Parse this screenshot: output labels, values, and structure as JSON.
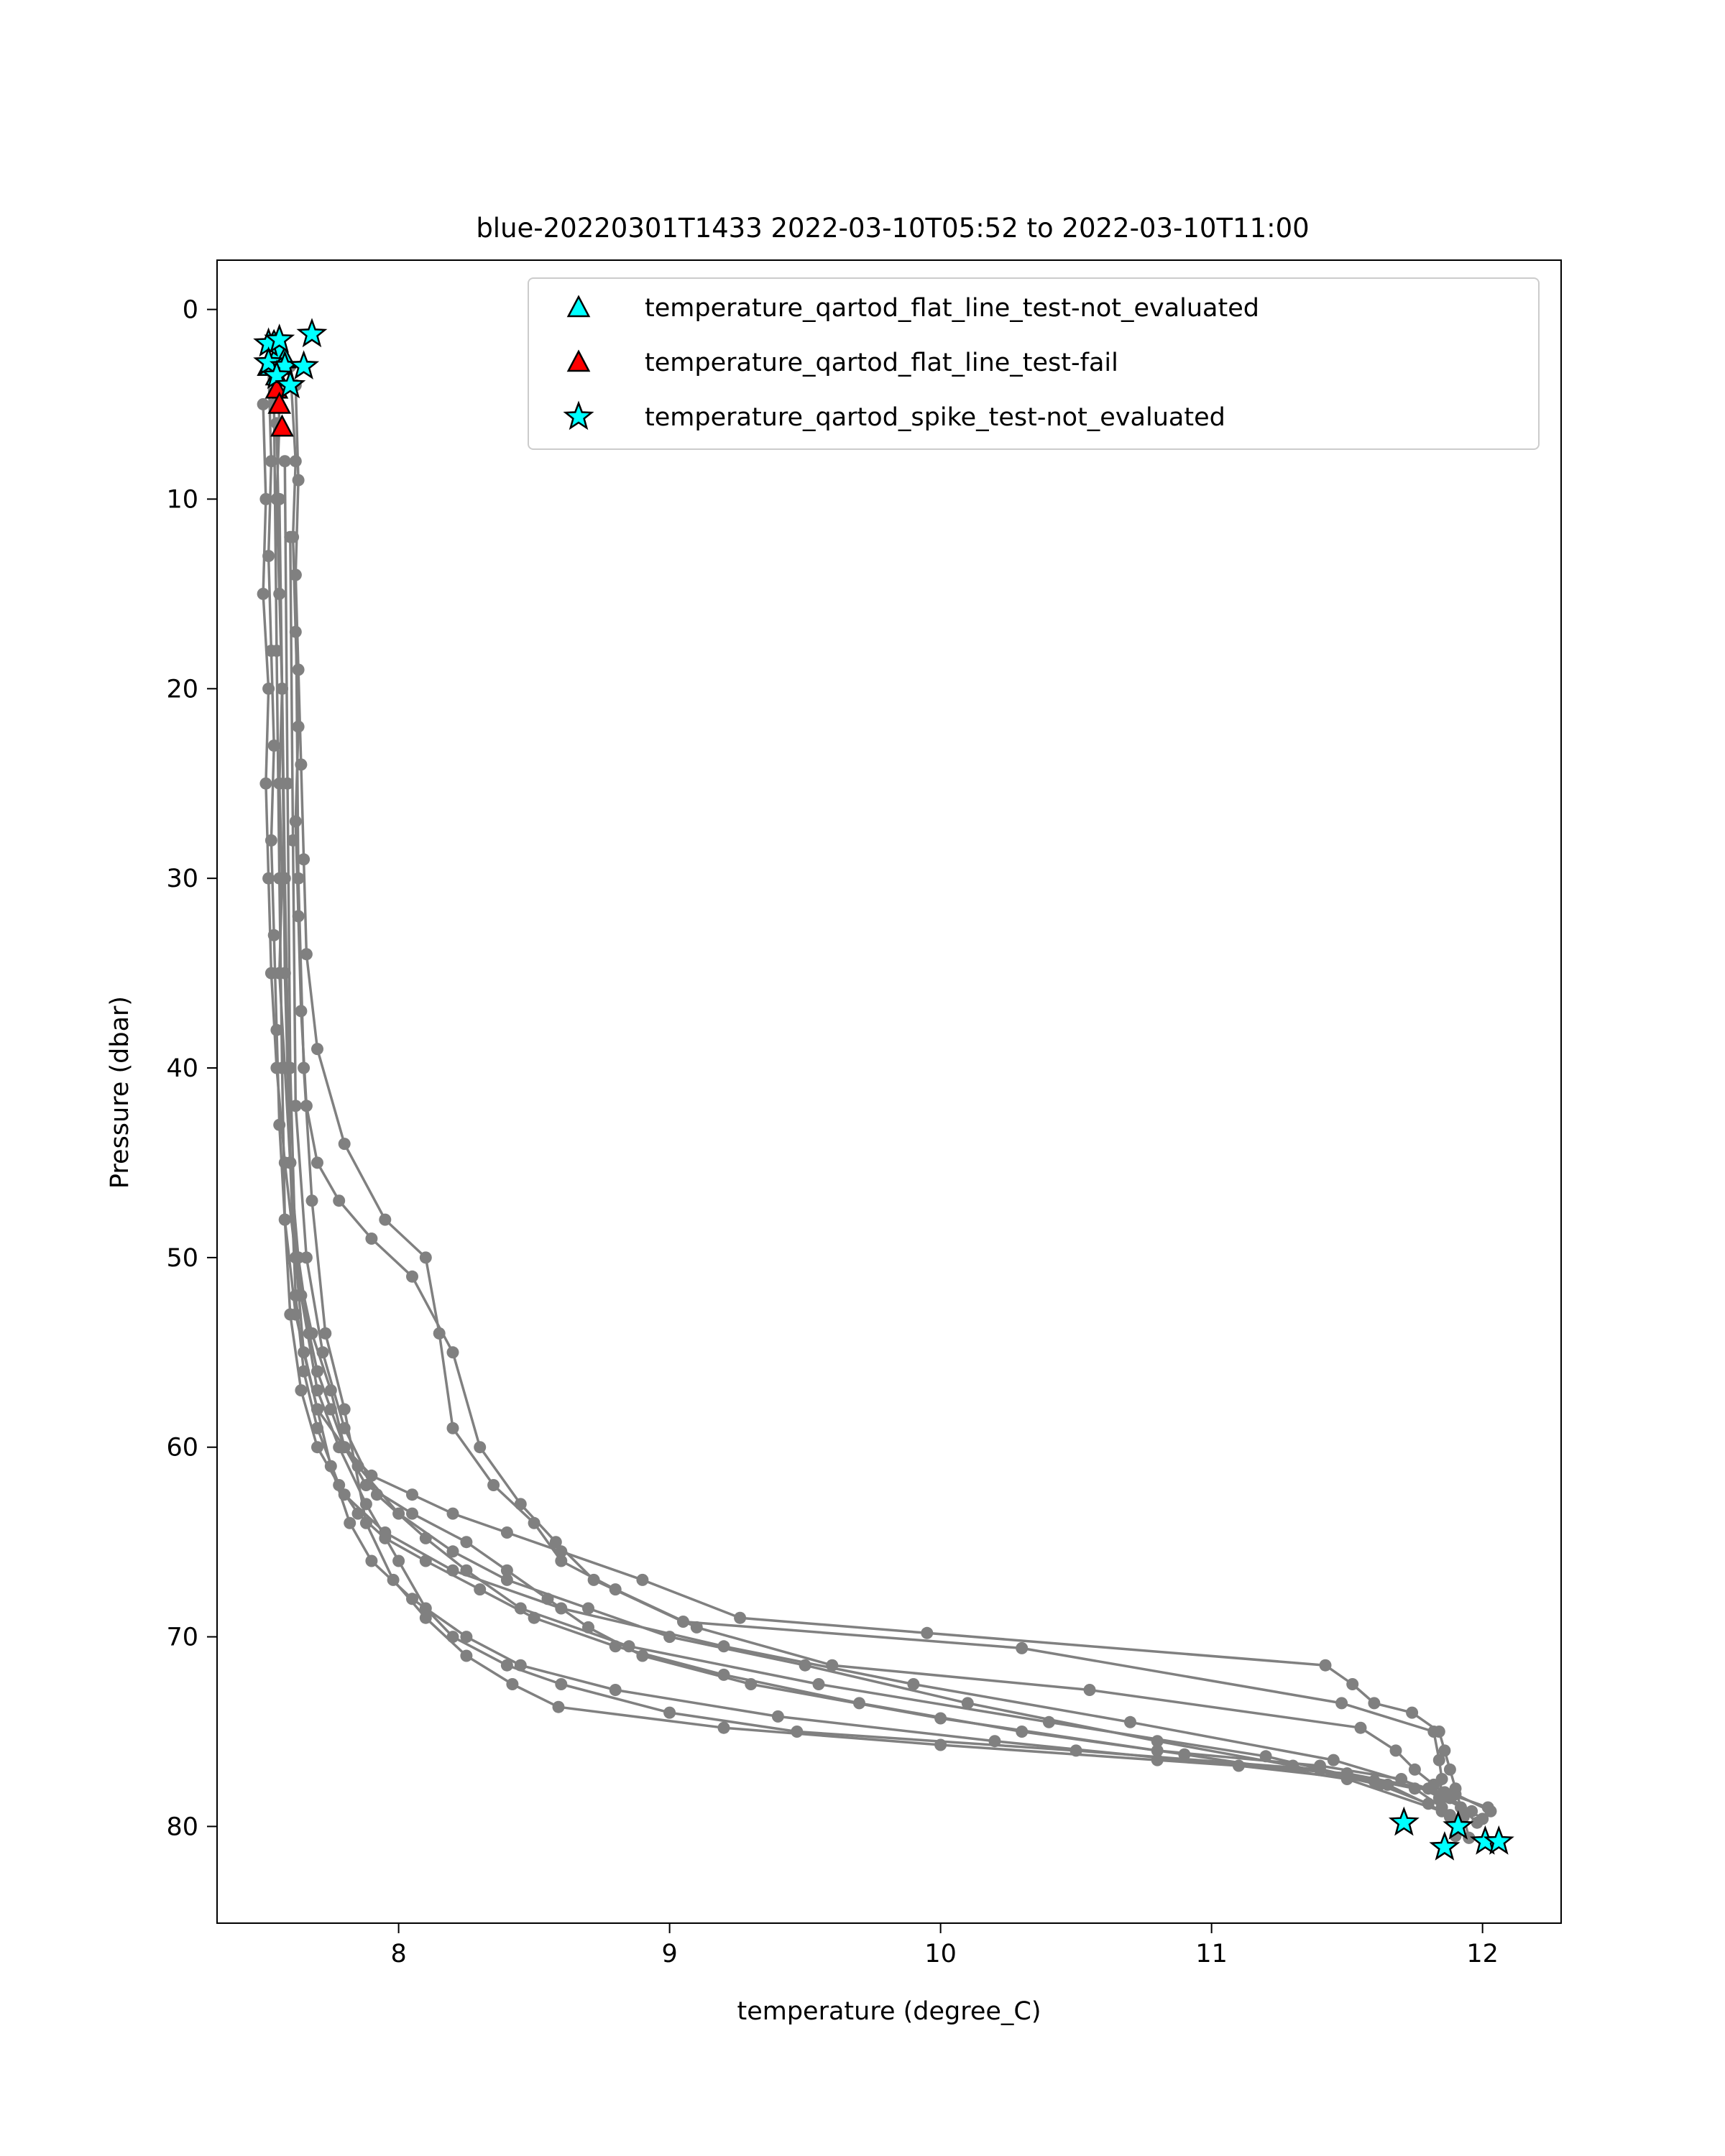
{
  "chart_data": {
    "type": "line",
    "title": "blue-20220301T1433 2022-03-10T05:52 to 2022-03-10T11:00",
    "xlabel": "temperature (degree_C)",
    "ylabel": "Pressure (dbar)",
    "xlim": [
      7.33,
      12.29
    ],
    "ylim": [
      85.1,
      -2.6
    ],
    "y_inverted": true,
    "grid": false,
    "legend_position": "top-right",
    "x_ticks": [
      8,
      9,
      10,
      11,
      12
    ],
    "x_tick_labels": [
      "8",
      "9",
      "10",
      "11",
      "12"
    ],
    "y_ticks": [
      0,
      10,
      20,
      30,
      40,
      50,
      60,
      70,
      80
    ],
    "y_tick_labels": [
      "0",
      "10",
      "20",
      "30",
      "40",
      "50",
      "60",
      "70",
      "80"
    ],
    "profile_color": "#808080",
    "series": [
      {
        "type": "line",
        "x": [
          7.55,
          7.56,
          7.55,
          7.56,
          7.57,
          7.56,
          7.57,
          7.56,
          7.58,
          7.6,
          7.63,
          7.67,
          7.7,
          7.75,
          7.8,
          7.9,
          8.05,
          8.2,
          8.4,
          8.6,
          8.9,
          9.26,
          9.95,
          11.42,
          11.52,
          11.6,
          11.74,
          11.84,
          11.86,
          11.88,
          11.9,
          11.93,
          11.95
        ],
        "y": [
          2,
          6,
          10,
          15,
          20,
          25,
          30,
          35,
          40,
          45,
          50,
          54,
          56,
          58,
          60,
          61.5,
          62.5,
          63.5,
          64.5,
          65.5,
          67,
          69,
          69.8,
          71.5,
          72.5,
          73.5,
          74,
          75,
          76,
          77,
          78,
          79.5,
          80.6
        ]
      },
      {
        "type": "line",
        "x": [
          7.6,
          7.62,
          7.61,
          7.62,
          7.63,
          7.62,
          7.63,
          7.64,
          7.66,
          7.7,
          7.78,
          7.9,
          8.05,
          8.2,
          8.3,
          8.45,
          8.58,
          8.72,
          9.05,
          10.3,
          11.48,
          11.82,
          11.84,
          11.85,
          11.84,
          11.88,
          11.9
        ],
        "y": [
          3,
          8,
          12,
          17,
          22,
          27,
          32,
          37,
          42,
          45,
          47,
          49,
          51,
          55,
          60,
          63,
          65,
          67,
          69.2,
          70.6,
          73.5,
          75,
          76.5,
          77.5,
          78.5,
          79.5,
          80.5
        ]
      },
      {
        "type": "line",
        "x": [
          7.62,
          7.63,
          7.62,
          7.63,
          7.64,
          7.65,
          7.66,
          7.7,
          7.8,
          7.95,
          8.1,
          8.15,
          8.2,
          8.35,
          8.5,
          8.6,
          8.8,
          9.1,
          9.6,
          10.55,
          11.55,
          11.68,
          11.75,
          11.82,
          11.88,
          12.0
        ],
        "y": [
          4,
          9,
          14,
          19,
          24,
          29,
          34,
          39,
          44,
          48,
          50,
          54,
          59,
          62,
          64,
          66,
          67.5,
          69.5,
          71.5,
          72.8,
          74.8,
          76,
          77,
          77.8,
          78.5,
          79.6
        ]
      },
      {
        "type": "line",
        "x": [
          7.5,
          7.51,
          7.5,
          7.52,
          7.51,
          7.52,
          7.53,
          7.55,
          7.58,
          7.62,
          7.68,
          7.75,
          7.8,
          7.88,
          8.05,
          8.25,
          8.4,
          8.55,
          8.7,
          8.9,
          9.3,
          10.0,
          10.8,
          11.4,
          11.7,
          11.85,
          11.96
        ],
        "y": [
          5,
          10,
          15,
          20,
          25,
          30,
          35,
          40,
          45,
          50,
          54,
          57,
          60,
          62,
          63.5,
          65,
          66.5,
          68,
          69.5,
          71,
          72.5,
          74.3,
          76,
          76.8,
          77.5,
          78.5,
          79.2
        ]
      },
      {
        "type": "line",
        "x": [
          7.52,
          7.53,
          7.52,
          7.53,
          7.54,
          7.53,
          7.54,
          7.55,
          7.56,
          7.58,
          7.62,
          7.7,
          7.85,
          8.0,
          8.2,
          8.4,
          8.7,
          9.0,
          9.5,
          10.1,
          10.8,
          11.3,
          11.62,
          11.8,
          11.9
        ],
        "y": [
          3,
          8,
          13,
          18,
          23,
          28,
          33,
          38,
          43,
          48,
          53,
          58,
          61,
          63.5,
          65.5,
          67,
          68.5,
          70,
          71.5,
          73.5,
          75.5,
          76.8,
          77.8,
          78.8,
          79.8
        ]
      },
      {
        "type": "line",
        "x": [
          7.55,
          7.57,
          7.58,
          7.6,
          7.62,
          7.65,
          7.7,
          7.78,
          7.85,
          7.95,
          8.1,
          8.3,
          8.5,
          8.8,
          9.2,
          9.7,
          10.3,
          10.9,
          11.5,
          11.85,
          11.95
        ],
        "y": [
          6,
          20,
          35,
          45,
          52,
          56,
          59,
          62,
          63.5,
          64.8,
          66,
          67.5,
          69,
          70.5,
          72,
          73.5,
          75,
          76.2,
          77.5,
          79.2,
          80.6
        ]
      },
      {
        "type": "line",
        "x": [
          7.58,
          7.59,
          7.6,
          7.62,
          7.65,
          7.7,
          7.75,
          7.82,
          7.9,
          8.05,
          8.25,
          8.45,
          8.8,
          9.4,
          10.2,
          11.1,
          11.6,
          11.9,
          12.03
        ],
        "y": [
          8,
          25,
          40,
          50,
          55,
          58,
          61,
          64,
          66,
          68,
          70,
          71.5,
          72.8,
          74.2,
          75.5,
          76.8,
          77.6,
          78.3,
          79.2
        ]
      },
      {
        "type": "line",
        "x": [
          7.56,
          7.58,
          7.6,
          7.64,
          7.7,
          7.78,
          7.88,
          8.0,
          8.1,
          8.2,
          8.4,
          8.6,
          9.0,
          9.47,
          10.5,
          11.4,
          11.75,
          11.85
        ],
        "y": [
          10,
          30,
          45,
          52,
          57,
          60,
          63,
          66,
          68.5,
          70,
          71.5,
          72.5,
          74,
          75,
          76,
          77,
          78,
          79
        ]
      },
      {
        "type": "line",
        "x": [
          7.6,
          7.61,
          7.62,
          7.66,
          7.72,
          7.8,
          7.92,
          8.1,
          8.25,
          8.45,
          8.85,
          9.55,
          10.4,
          11.2,
          11.65,
          11.88
        ],
        "y": [
          12,
          28,
          42,
          50,
          55,
          59,
          62.5,
          64.8,
          66.5,
          68.5,
          70.5,
          72.5,
          74.5,
          76.3,
          77.8,
          79.4
        ]
      },
      {
        "type": "line",
        "x": [
          7.62,
          7.63,
          7.65,
          7.68,
          7.73,
          7.8,
          7.88,
          7.98,
          8.1,
          8.25,
          8.42,
          8.59,
          9.2,
          10.0,
          10.8,
          11.5,
          11.86,
          12.02
        ],
        "y": [
          14,
          30,
          40,
          47,
          54,
          58,
          64,
          67,
          69,
          71,
          72.5,
          73.7,
          74.8,
          75.7,
          76.5,
          77.2,
          78.2,
          79.0
        ]
      },
      {
        "type": "line",
        "x": [
          7.54,
          7.55,
          7.56,
          7.57,
          7.58,
          7.6,
          7.64,
          7.7,
          7.8,
          7.95,
          8.2,
          8.6,
          9.2,
          9.9,
          10.7,
          11.45,
          11.8,
          11.92,
          11.98
        ],
        "y": [
          5,
          18,
          30,
          40,
          48,
          53,
          57,
          60,
          62.5,
          64.5,
          66.5,
          68.5,
          70.5,
          72.5,
          74.5,
          76.5,
          78,
          79,
          79.8
        ]
      }
    ],
    "legend_entries": [
      {
        "label": "temperature_qartod_flat_line_test-not_evaluated",
        "marker": "triangle",
        "color": "#00ffff"
      },
      {
        "label": "temperature_qartod_flat_line_test-fail",
        "marker": "triangle",
        "color": "#ff0000"
      },
      {
        "label": "temperature_qartod_spike_test-not_evaluated",
        "marker": "star",
        "color": "#00ffff"
      }
    ],
    "flat_line_not_evaluated": {
      "x": [
        7.54,
        7.56,
        7.58,
        7.52,
        7.55
      ],
      "y": [
        1.7,
        2.2,
        2.6,
        3.0,
        3.5
      ]
    },
    "flat_line_fail": {
      "x": [
        7.55,
        7.56,
        7.57
      ],
      "y": [
        4.2,
        5.0,
        6.2
      ]
    },
    "spike_not_evaluated": {
      "x": [
        7.52,
        7.56,
        7.68,
        7.52,
        7.58,
        7.65,
        7.55,
        7.6,
        11.71,
        11.91,
        11.86,
        12.01,
        12.06
      ],
      "y": [
        1.8,
        1.6,
        1.3,
        2.8,
        3.0,
        3.0,
        3.5,
        4.0,
        79.8,
        80.0,
        81.1,
        80.8,
        80.8
      ]
    }
  }
}
